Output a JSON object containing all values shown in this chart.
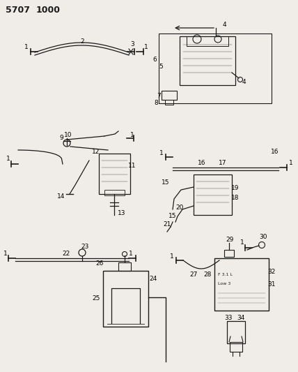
{
  "title1": "5707",
  "title2": "1000",
  "bg_color": "#f0ede8",
  "line_color": "#1a1a1a",
  "label_color": "#000000",
  "figsize": [
    4.28,
    5.33
  ],
  "dpi": 100
}
